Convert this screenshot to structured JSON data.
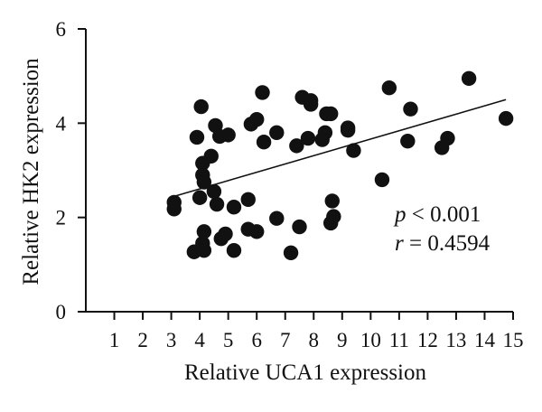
{
  "chart_data": {
    "type": "scatter",
    "xlabel": "Relative UCA1 expression",
    "ylabel": "Relative HK2 expression",
    "xlim": [
      0,
      15
    ],
    "ylim": [
      0,
      6
    ],
    "xticks": [
      "1",
      "2",
      "3",
      "4",
      "5",
      "6",
      "7",
      "8",
      "9",
      "10",
      "11",
      "12",
      "13",
      "14",
      "15"
    ],
    "yticks": [
      "0",
      "2",
      "4",
      "6"
    ],
    "grid": false,
    "points": [
      {
        "x": 3.1,
        "y": 2.32
      },
      {
        "x": 3.1,
        "y": 2.18
      },
      {
        "x": 3.8,
        "y": 1.27
      },
      {
        "x": 3.9,
        "y": 3.7
      },
      {
        "x": 4.0,
        "y": 2.42
      },
      {
        "x": 4.05,
        "y": 4.35
      },
      {
        "x": 4.1,
        "y": 3.15
      },
      {
        "x": 4.1,
        "y": 2.9
      },
      {
        "x": 4.15,
        "y": 2.75
      },
      {
        "x": 4.15,
        "y": 1.7
      },
      {
        "x": 4.1,
        "y": 1.45
      },
      {
        "x": 4.15,
        "y": 1.3
      },
      {
        "x": 4.4,
        "y": 3.3
      },
      {
        "x": 4.5,
        "y": 2.55
      },
      {
        "x": 4.55,
        "y": 3.95
      },
      {
        "x": 4.6,
        "y": 2.28
      },
      {
        "x": 4.7,
        "y": 3.72
      },
      {
        "x": 4.75,
        "y": 1.55
      },
      {
        "x": 4.9,
        "y": 1.65
      },
      {
        "x": 5.0,
        "y": 3.75
      },
      {
        "x": 5.2,
        "y": 2.22
      },
      {
        "x": 5.2,
        "y": 1.3
      },
      {
        "x": 5.7,
        "y": 2.38
      },
      {
        "x": 5.7,
        "y": 1.75
      },
      {
        "x": 5.8,
        "y": 3.98
      },
      {
        "x": 6.0,
        "y": 4.08
      },
      {
        "x": 6.0,
        "y": 1.7
      },
      {
        "x": 6.2,
        "y": 4.65
      },
      {
        "x": 6.25,
        "y": 3.6
      },
      {
        "x": 6.7,
        "y": 3.8
      },
      {
        "x": 6.7,
        "y": 1.98
      },
      {
        "x": 7.2,
        "y": 1.25
      },
      {
        "x": 7.4,
        "y": 3.52
      },
      {
        "x": 7.5,
        "y": 1.8
      },
      {
        "x": 7.6,
        "y": 4.55
      },
      {
        "x": 7.8,
        "y": 3.68
      },
      {
        "x": 7.9,
        "y": 4.48
      },
      {
        "x": 7.9,
        "y": 4.4
      },
      {
        "x": 8.3,
        "y": 3.65
      },
      {
        "x": 8.4,
        "y": 3.8
      },
      {
        "x": 8.45,
        "y": 4.2
      },
      {
        "x": 8.6,
        "y": 4.2
      },
      {
        "x": 8.6,
        "y": 1.88
      },
      {
        "x": 8.65,
        "y": 2.35
      },
      {
        "x": 8.7,
        "y": 2.02
      },
      {
        "x": 9.2,
        "y": 3.9
      },
      {
        "x": 9.2,
        "y": 3.85
      },
      {
        "x": 9.4,
        "y": 3.42
      },
      {
        "x": 10.4,
        "y": 2.8
      },
      {
        "x": 10.65,
        "y": 4.75
      },
      {
        "x": 11.3,
        "y": 3.62
      },
      {
        "x": 11.4,
        "y": 4.3
      },
      {
        "x": 12.5,
        "y": 3.48
      },
      {
        "x": 12.7,
        "y": 3.68
      },
      {
        "x": 13.45,
        "y": 4.95
      },
      {
        "x": 14.75,
        "y": 4.1
      }
    ],
    "trendline": {
      "x": [
        3.0,
        14.75
      ],
      "y": [
        2.43,
        4.5
      ]
    },
    "annotations": {
      "p_symbol": "p",
      "p_rest": " < 0.001",
      "r_symbol": "r",
      "r_rest": " = 0.4594"
    }
  }
}
